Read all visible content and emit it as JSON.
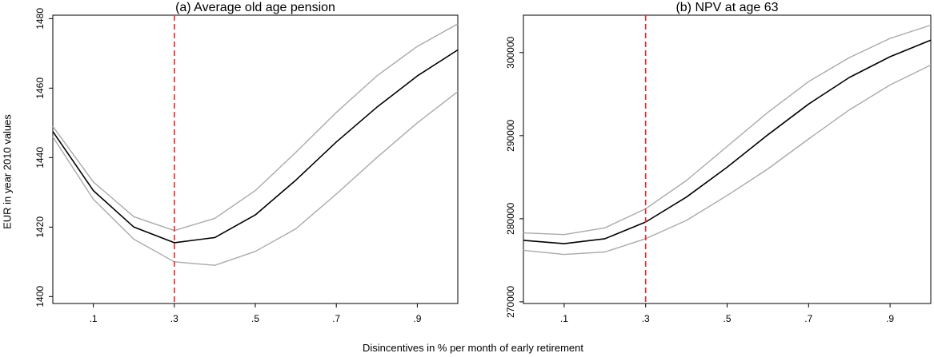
{
  "ylabel": "EUR in year 2010 values",
  "xlabel": "Disincentives in % per month of early retirement",
  "colors": {
    "estimate": "#000000",
    "ci": "#aaaaaa",
    "reference": "#e8262b"
  },
  "chart_data": [
    {
      "type": "line",
      "title": "(a) Average old age pension",
      "x": [
        0.0,
        0.1,
        0.2,
        0.3,
        0.4,
        0.5,
        0.6,
        0.7,
        0.8,
        0.9,
        1.0
      ],
      "xticks": [
        0.1,
        0.3,
        0.5,
        0.7,
        0.9
      ],
      "xtick_labels": [
        ".1",
        ".3",
        ".5",
        ".7",
        ".9"
      ],
      "xlim": [
        0.0,
        1.0
      ],
      "ylim": [
        1398,
        1481
      ],
      "yticks": [
        1400,
        1420,
        1440,
        1460,
        1480
      ],
      "ytick_labels": [
        "1400",
        "1420",
        "1440",
        "1460",
        "1480"
      ],
      "reference_line_x": 0.3,
      "series": [
        {
          "values": [
            1447.5,
            1430.5,
            1420.0,
            1415.5,
            1417.0,
            1423.5,
            1433.5,
            1444.5,
            1454.5,
            1463.5,
            1471.0
          ],
          "role": "estimate"
        },
        {
          "values": [
            1449.0,
            1433.0,
            1423.0,
            1419.0,
            1422.5,
            1430.5,
            1441.5,
            1453.0,
            1463.5,
            1472.0,
            1478.5
          ],
          "role": "ci"
        },
        {
          "values": [
            1446.0,
            1428.0,
            1416.5,
            1410.0,
            1409.0,
            1413.0,
            1419.5,
            1429.5,
            1440.0,
            1450.0,
            1459.0
          ],
          "role": "ci"
        }
      ]
    },
    {
      "type": "line",
      "title": "(b) NPV at age 63",
      "x": [
        0.0,
        0.1,
        0.2,
        0.3,
        0.4,
        0.5,
        0.6,
        0.7,
        0.8,
        0.9,
        1.0
      ],
      "xticks": [
        0.1,
        0.3,
        0.5,
        0.7,
        0.9
      ],
      "xtick_labels": [
        ".1",
        ".3",
        ".5",
        ".7",
        ".9"
      ],
      "xlim": [
        0.0,
        1.0
      ],
      "ylim": [
        269800,
        304500
      ],
      "yticks": [
        270000,
        280000,
        290000,
        300000
      ],
      "ytick_labels": [
        "270000",
        "280000",
        "290000",
        "300000"
      ],
      "reference_line_x": 0.3,
      "series": [
        {
          "values": [
            277400,
            277000,
            277600,
            279600,
            282600,
            286200,
            290100,
            293800,
            297000,
            299500,
            301500
          ],
          "role": "estimate"
        },
        {
          "values": [
            278300,
            278100,
            278900,
            281200,
            284600,
            288700,
            292800,
            296500,
            299400,
            301700,
            303300
          ],
          "role": "ci"
        },
        {
          "values": [
            276200,
            275700,
            276000,
            277600,
            279800,
            282800,
            286000,
            289600,
            293100,
            296100,
            298500
          ],
          "role": "ci"
        }
      ]
    }
  ]
}
